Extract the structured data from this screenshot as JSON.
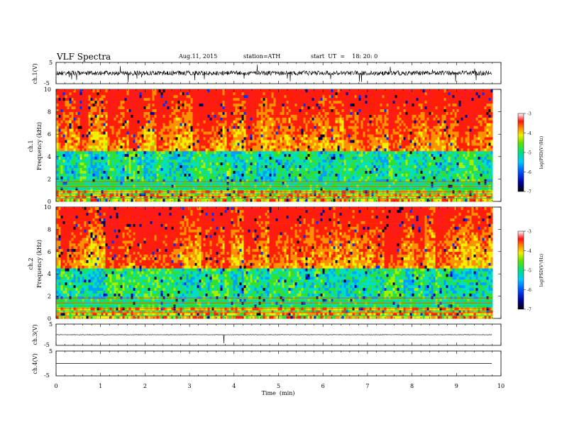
{
  "header": {
    "title": "VLF  Spectra",
    "date": "Aug.11, 2015",
    "station": "station=ATH",
    "start": "start  UT  =    18: 20: 0"
  },
  "chart_data": [
    {
      "type": "line",
      "name": "ch1-waveform",
      "ylabel": "ch.1(V)",
      "ylim": [
        -5,
        5
      ],
      "yticks": [
        "5",
        "-5"
      ],
      "xlim": [
        0,
        10
      ]
    },
    {
      "type": "heatmap",
      "name": "ch1-spectrogram",
      "ylabel": "ch.1\nFrequency (kHz)",
      "ylim": [
        0,
        10
      ],
      "yticks": [
        "0",
        "2",
        "4",
        "6",
        "8",
        "10"
      ],
      "xlim": [
        0,
        10
      ],
      "data_end_min": 9.8,
      "colorbar": {
        "label": "log(PSD(V²/Hz)",
        "range": [
          -7,
          -3
        ],
        "ticks": [
          "-3",
          "-4",
          "-5",
          "-6",
          "-7"
        ]
      }
    },
    {
      "type": "heatmap",
      "name": "ch2-spectrogram",
      "ylabel": "ch.2\nFrequency (kHz)",
      "ylim": [
        0,
        10
      ],
      "yticks": [
        "0",
        "2",
        "4",
        "6",
        "8",
        "10"
      ],
      "xlim": [
        0,
        10
      ],
      "data_end_min": 9.8,
      "colorbar": {
        "label": "log(PSD(V²/Hz)",
        "range": [
          -7,
          -3
        ],
        "ticks": [
          "-3",
          "-4",
          "-5",
          "-6",
          "-7"
        ]
      }
    },
    {
      "type": "line",
      "name": "ch3-waveform",
      "ylabel": "ch.3(V)",
      "ylim": [
        -5,
        5
      ],
      "yticks": [
        "5",
        "-5"
      ],
      "xlim": [
        0,
        10
      ]
    },
    {
      "type": "line",
      "name": "ch4-waveform",
      "ylabel": "ch.4(V)",
      "ylim": [
        -5,
        5
      ],
      "yticks": [
        "5",
        "-5"
      ],
      "xlim": [
        0,
        10
      ]
    }
  ],
  "xaxis": {
    "label": "Time  (min)",
    "ticks": [
      "0",
      "1",
      "2",
      "3",
      "4",
      "5",
      "6",
      "7",
      "8",
      "9",
      "10"
    ]
  }
}
